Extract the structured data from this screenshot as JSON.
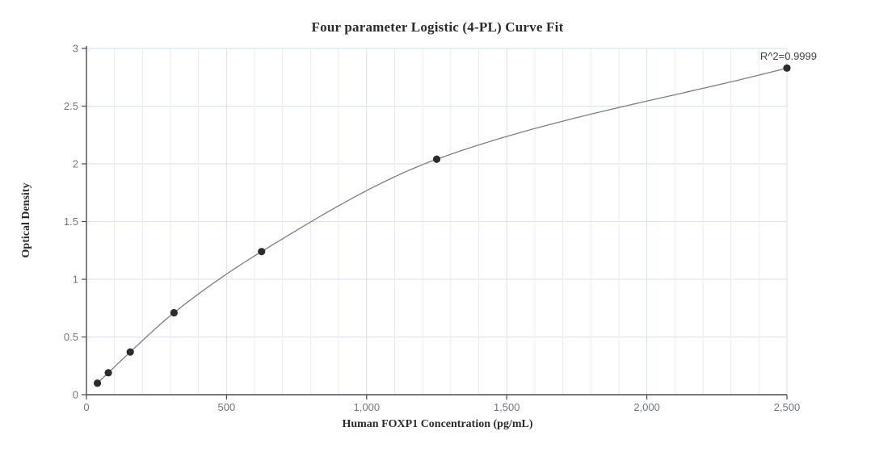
{
  "chart_data": {
    "type": "scatter",
    "title": "Four parameter Logistic (4-PL) Curve Fit",
    "xlabel": "Human FOXP1 Concentration (pg/mL)",
    "ylabel": "Optical Density",
    "annotation": "R^2=0.9999",
    "series": [
      {
        "name": "standard-curve",
        "x": [
          39.06,
          78.13,
          156.25,
          312.5,
          625,
          1250,
          2500
        ],
        "y": [
          0.1,
          0.19,
          0.37,
          0.71,
          1.24,
          2.04,
          2.83
        ]
      }
    ],
    "fit": "4-parameter-logistic",
    "xlim": [
      0,
      2500
    ],
    "ylim": [
      0,
      3
    ],
    "x_major_ticks": [
      0,
      500,
      1000,
      1500,
      2000,
      2500
    ],
    "x_tick_labels": [
      "0",
      "500",
      "1,000",
      "1,500",
      "2,000",
      "2,500"
    ],
    "x_minor_grid_step": 100,
    "y_ticks": [
      0,
      0.5,
      1,
      1.5,
      2,
      2.5,
      3
    ],
    "y_tick_labels": [
      "0",
      "0.5",
      "1",
      "1.5",
      "2",
      "2.5",
      "3"
    ],
    "grid": true,
    "legend_position": "none",
    "colors": {
      "background": "#ffffff",
      "point": "#2b2c30",
      "curve": "#7d7d84",
      "grid_minor": "#e8ecf5",
      "grid_major": "#d9e0ee",
      "axis": "#4b4b52",
      "tick_label": "#70757e",
      "text": "#2b2b2b",
      "annotation": "#3f4147"
    }
  }
}
